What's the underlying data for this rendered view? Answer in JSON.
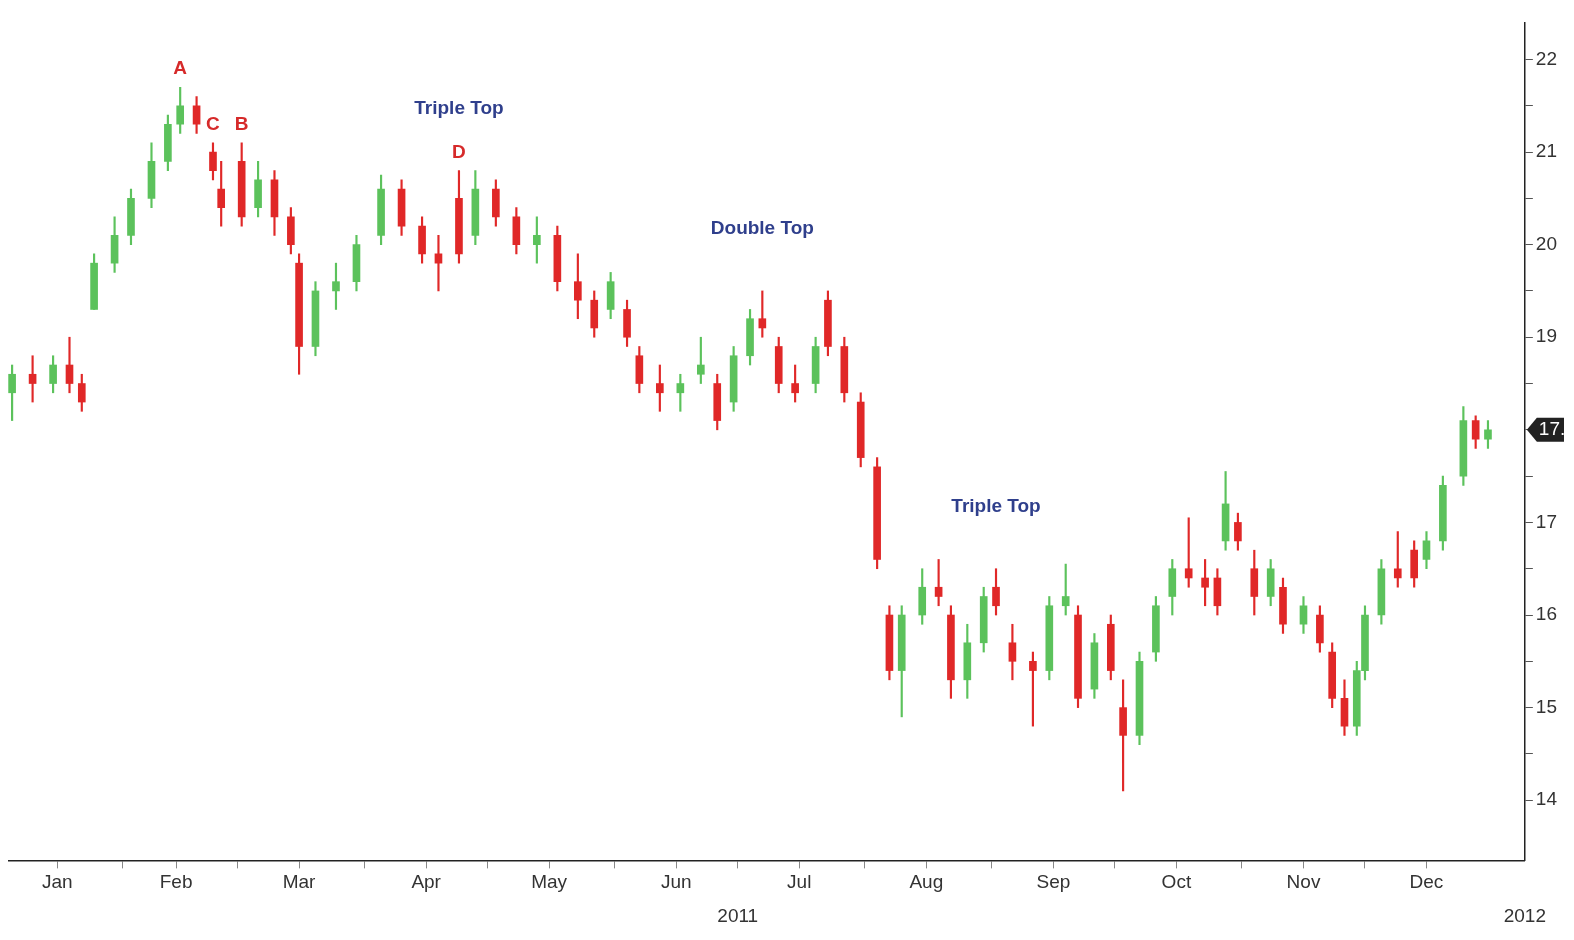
{
  "chart_data": {
    "type": "candlestick",
    "x": [
      "2011-01-05",
      "2011-01-10",
      "2011-01-15",
      "2011-01-19",
      "2011-01-22",
      "2011-01-25",
      "2011-01-30",
      "2011-02-03",
      "2011-02-08",
      "2011-02-12",
      "2011-02-15",
      "2011-02-19",
      "2011-02-23",
      "2011-02-25",
      "2011-03-02",
      "2011-03-06",
      "2011-03-10",
      "2011-03-14",
      "2011-03-16",
      "2011-03-20",
      "2011-03-25",
      "2011-03-30",
      "2011-04-05",
      "2011-04-10",
      "2011-04-15",
      "2011-04-19",
      "2011-04-24",
      "2011-04-28",
      "2011-05-03",
      "2011-05-08",
      "2011-05-13",
      "2011-05-18",
      "2011-05-23",
      "2011-05-27",
      "2011-05-31",
      "2011-06-04",
      "2011-06-07",
      "2011-06-12",
      "2011-06-17",
      "2011-06-22",
      "2011-06-26",
      "2011-06-30",
      "2011-07-04",
      "2011-07-07",
      "2011-07-11",
      "2011-07-15",
      "2011-07-20",
      "2011-07-23",
      "2011-07-27",
      "2011-07-31",
      "2011-08-04",
      "2011-08-07",
      "2011-08-10",
      "2011-08-15",
      "2011-08-19",
      "2011-08-22",
      "2011-08-26",
      "2011-08-30",
      "2011-09-02",
      "2011-09-06",
      "2011-09-11",
      "2011-09-15",
      "2011-09-19",
      "2011-09-22",
      "2011-09-26",
      "2011-09-30",
      "2011-10-03",
      "2011-10-07",
      "2011-10-11",
      "2011-10-15",
      "2011-10-19",
      "2011-10-23",
      "2011-10-26",
      "2011-10-28",
      "2011-10-31",
      "2011-11-04",
      "2011-11-08",
      "2011-11-11",
      "2011-11-16",
      "2011-11-20",
      "2011-11-23",
      "2011-11-26",
      "2011-11-29",
      "2011-12-01",
      "2011-12-05",
      "2011-12-09",
      "2011-12-13",
      "2011-12-16",
      "2011-12-20",
      "2011-12-25",
      "2011-12-28",
      "2011-12-31"
    ],
    "ohlc": [
      [
        18.4,
        18.7,
        18.1,
        18.6
      ],
      [
        18.6,
        18.8,
        18.3,
        18.5
      ],
      [
        18.5,
        18.8,
        18.4,
        18.7
      ],
      [
        18.7,
        19.0,
        18.4,
        18.5
      ],
      [
        18.5,
        18.6,
        18.2,
        18.3
      ],
      [
        19.3,
        19.9,
        19.3,
        19.8
      ],
      [
        19.8,
        20.3,
        19.7,
        20.1
      ],
      [
        20.1,
        20.6,
        20.0,
        20.5
      ],
      [
        20.5,
        21.1,
        20.4,
        20.9
      ],
      [
        20.9,
        21.4,
        20.8,
        21.3
      ],
      [
        21.3,
        21.7,
        21.2,
        21.5
      ],
      [
        21.5,
        21.6,
        21.2,
        21.3
      ],
      [
        21.0,
        21.1,
        20.7,
        20.8
      ],
      [
        20.6,
        20.9,
        20.2,
        20.4
      ],
      [
        20.9,
        21.1,
        20.2,
        20.3
      ],
      [
        20.4,
        20.9,
        20.3,
        20.7
      ],
      [
        20.7,
        20.8,
        20.1,
        20.3
      ],
      [
        20.3,
        20.4,
        19.9,
        20.0
      ],
      [
        19.8,
        19.9,
        18.6,
        18.9
      ],
      [
        18.9,
        19.6,
        18.8,
        19.5
      ],
      [
        19.5,
        19.8,
        19.3,
        19.6
      ],
      [
        19.6,
        20.1,
        19.5,
        20.0
      ],
      [
        20.1,
        20.75,
        20.0,
        20.6
      ],
      [
        20.6,
        20.7,
        20.1,
        20.2
      ],
      [
        20.2,
        20.3,
        19.8,
        19.9
      ],
      [
        19.9,
        20.1,
        19.5,
        19.8
      ],
      [
        20.5,
        20.8,
        19.8,
        19.9
      ],
      [
        20.1,
        20.8,
        20.0,
        20.6
      ],
      [
        20.6,
        20.7,
        20.2,
        20.3
      ],
      [
        20.3,
        20.4,
        19.9,
        20.0
      ],
      [
        20.0,
        20.3,
        19.8,
        20.1
      ],
      [
        20.1,
        20.2,
        19.5,
        19.6
      ],
      [
        19.6,
        19.9,
        19.2,
        19.4
      ],
      [
        19.4,
        19.5,
        19.0,
        19.1
      ],
      [
        19.3,
        19.7,
        19.2,
        19.6
      ],
      [
        19.3,
        19.4,
        18.9,
        19.0
      ],
      [
        18.8,
        18.9,
        18.4,
        18.5
      ],
      [
        18.5,
        18.7,
        18.2,
        18.4
      ],
      [
        18.4,
        18.6,
        18.2,
        18.5
      ],
      [
        18.6,
        19.0,
        18.5,
        18.7
      ],
      [
        18.5,
        18.6,
        18.0,
        18.1
      ],
      [
        18.3,
        18.9,
        18.2,
        18.8
      ],
      [
        18.8,
        19.3,
        18.7,
        19.2
      ],
      [
        19.2,
        19.5,
        19.0,
        19.1
      ],
      [
        18.9,
        19.0,
        18.4,
        18.5
      ],
      [
        18.5,
        18.7,
        18.3,
        18.4
      ],
      [
        18.5,
        19.0,
        18.4,
        18.9
      ],
      [
        19.4,
        19.5,
        18.8,
        18.9
      ],
      [
        18.9,
        19.0,
        18.3,
        18.4
      ],
      [
        18.3,
        18.4,
        17.6,
        17.7
      ],
      [
        17.6,
        17.7,
        16.5,
        16.6
      ],
      [
        16.0,
        16.1,
        15.3,
        15.4
      ],
      [
        15.4,
        16.1,
        14.9,
        16.0
      ],
      [
        16.0,
        16.5,
        15.9,
        16.3
      ],
      [
        16.3,
        16.6,
        16.1,
        16.2
      ],
      [
        16.0,
        16.1,
        15.1,
        15.3
      ],
      [
        15.3,
        15.9,
        15.1,
        15.7
      ],
      [
        15.7,
        16.3,
        15.6,
        16.2
      ],
      [
        16.3,
        16.5,
        16.0,
        16.1
      ],
      [
        15.7,
        15.9,
        15.3,
        15.5
      ],
      [
        15.5,
        15.6,
        14.8,
        15.4
      ],
      [
        15.4,
        16.2,
        15.3,
        16.1
      ],
      [
        16.1,
        16.55,
        16.0,
        16.2
      ],
      [
        16.0,
        16.1,
        15.0,
        15.1
      ],
      [
        15.2,
        15.8,
        15.1,
        15.7
      ],
      [
        15.9,
        16.0,
        15.3,
        15.4
      ],
      [
        15.0,
        15.3,
        14.1,
        14.7
      ],
      [
        14.7,
        15.6,
        14.6,
        15.5
      ],
      [
        15.6,
        16.2,
        15.5,
        16.1
      ],
      [
        16.2,
        16.6,
        16.0,
        16.5
      ],
      [
        16.5,
        17.05,
        16.3,
        16.4
      ],
      [
        16.4,
        16.6,
        16.1,
        16.3
      ],
      [
        16.4,
        16.5,
        16.0,
        16.1
      ],
      [
        16.8,
        17.55,
        16.7,
        17.2
      ],
      [
        17.0,
        17.1,
        16.7,
        16.8
      ],
      [
        16.5,
        16.7,
        16.0,
        16.2
      ],
      [
        16.2,
        16.6,
        16.1,
        16.5
      ],
      [
        16.3,
        16.4,
        15.8,
        15.9
      ],
      [
        15.9,
        16.2,
        15.8,
        16.1
      ],
      [
        16.0,
        16.1,
        15.6,
        15.7
      ],
      [
        15.6,
        15.7,
        15.0,
        15.1
      ],
      [
        15.1,
        15.3,
        14.7,
        14.8
      ],
      [
        14.8,
        15.5,
        14.7,
        15.4
      ],
      [
        15.4,
        16.1,
        15.3,
        16.0
      ],
      [
        16.0,
        16.6,
        15.9,
        16.5
      ],
      [
        16.5,
        16.9,
        16.3,
        16.4
      ],
      [
        16.7,
        16.8,
        16.3,
        16.4
      ],
      [
        16.6,
        16.9,
        16.5,
        16.8
      ],
      [
        16.8,
        17.5,
        16.7,
        17.4
      ],
      [
        17.5,
        18.25,
        17.4,
        18.1
      ],
      [
        18.1,
        18.15,
        17.8,
        17.9
      ],
      [
        17.9,
        18.1,
        17.8,
        18.0
      ]
    ],
    "colors": [
      "#5cc25c",
      "#e02828",
      "#5cc25c",
      "#e02828",
      "#e02828",
      "#5cc25c",
      "#5cc25c",
      "#5cc25c",
      "#5cc25c",
      "#5cc25c",
      "#5cc25c",
      "#e02828",
      "#e02828",
      "#e02828",
      "#e02828",
      "#5cc25c",
      "#e02828",
      "#e02828",
      "#e02828",
      "#5cc25c",
      "#5cc25c",
      "#5cc25c",
      "#5cc25c",
      "#e02828",
      "#e02828",
      "#e02828",
      "#e02828",
      "#5cc25c",
      "#e02828",
      "#e02828",
      "#5cc25c",
      "#e02828",
      "#e02828",
      "#e02828",
      "#5cc25c",
      "#e02828",
      "#e02828",
      "#e02828",
      "#5cc25c",
      "#5cc25c",
      "#e02828",
      "#5cc25c",
      "#5cc25c",
      "#e02828",
      "#e02828",
      "#e02828",
      "#5cc25c",
      "#e02828",
      "#e02828",
      "#e02828",
      "#e02828",
      "#e02828",
      "#5cc25c",
      "#5cc25c",
      "#e02828",
      "#e02828",
      "#5cc25c",
      "#5cc25c",
      "#e02828",
      "#e02828",
      "#e02828",
      "#5cc25c",
      "#5cc25c",
      "#e02828",
      "#5cc25c",
      "#e02828",
      "#e02828",
      "#5cc25c",
      "#5cc25c",
      "#5cc25c",
      "#e02828",
      "#e02828",
      "#e02828",
      "#5cc25c",
      "#e02828",
      "#e02828",
      "#5cc25c",
      "#e02828",
      "#5cc25c",
      "#e02828",
      "#e02828",
      "#e02828",
      "#5cc25c",
      "#5cc25c",
      "#5cc25c",
      "#e02828",
      "#e02828",
      "#5cc25c",
      "#5cc25c",
      "#5cc25c",
      "#e02828",
      "#5cc25c"
    ],
    "xlim": [
      "2011-01-04",
      "2012-01-09"
    ],
    "xticks": [
      {
        "value": "2011-01-16",
        "label": "Jan"
      },
      {
        "value": "2011-02-01",
        "label": null
      },
      {
        "value": "2011-02-14",
        "label": "Feb"
      },
      {
        "value": "2011-03-01",
        "label": null
      },
      {
        "value": "2011-03-16",
        "label": "Mar"
      },
      {
        "value": "2011-04-01",
        "label": null
      },
      {
        "value": "2011-04-16",
        "label": "Apr"
      },
      {
        "value": "2011-05-01",
        "label": null
      },
      {
        "value": "2011-05-16",
        "label": "May"
      },
      {
        "value": "2011-06-01",
        "label": null
      },
      {
        "value": "2011-06-16",
        "label": "Jun"
      },
      {
        "value": "2011-07-01",
        "label": null
      },
      {
        "value": "2011-07-16",
        "label": "Jul"
      },
      {
        "value": "2011-08-01",
        "label": null
      },
      {
        "value": "2011-08-16",
        "label": "Aug"
      },
      {
        "value": "2011-09-01",
        "label": null
      },
      {
        "value": "2011-09-16",
        "label": "Sep"
      },
      {
        "value": "2011-10-01",
        "label": null
      },
      {
        "value": "2011-10-16",
        "label": "Oct"
      },
      {
        "value": "2011-11-01",
        "label": null
      },
      {
        "value": "2011-11-16",
        "label": "Nov"
      },
      {
        "value": "2011-12-01",
        "label": null
      },
      {
        "value": "2011-12-16",
        "label": "Dec"
      }
    ],
    "x2lim": [
      "2011-01-04",
      "2012-01-09"
    ],
    "x2ticks": [
      {
        "value": "2011-07-01",
        "label": "2011"
      },
      {
        "value": "2012-01-09",
        "label": "2012"
      }
    ],
    "ylim": [
      13.35,
      22.4
    ],
    "yticks": [
      14,
      {
        "value": 14.5,
        "label": null
      },
      15,
      {
        "value": 15.5,
        "label": null
      },
      16,
      {
        "value": 16.5,
        "label": null
      },
      17,
      {
        "value": 17.5,
        "label": null
      },
      {
        "value": 18,
        "label": null
      },
      {
        "value": 18.5,
        "label": null
      },
      19,
      {
        "value": 19.5,
        "label": null
      },
      20,
      {
        "value": 20.5,
        "label": null
      },
      21,
      {
        "value": 21.5,
        "label": null
      },
      22
    ],
    "annotations": [
      {
        "text": "A",
        "x": "2011-02-15",
        "y": 21.7
      },
      {
        "text": "B",
        "x": "2011-03-02",
        "y": 21.1
      },
      {
        "text": "C",
        "x": "2011-02-23",
        "y": 21.1
      },
      {
        "text": "D",
        "x": "2011-04-24",
        "y": 20.8
      },
      {
        "text": "Triple Top",
        "x": "2011-04-24",
        "y": 20.8
      },
      {
        "text": "Double Top",
        "x": "2011-07-07",
        "y": 19.5
      },
      {
        "text": "Triple Top",
        "x": "2011-09-02",
        "y": 16.5
      },
      "17."
    ]
  }
}
